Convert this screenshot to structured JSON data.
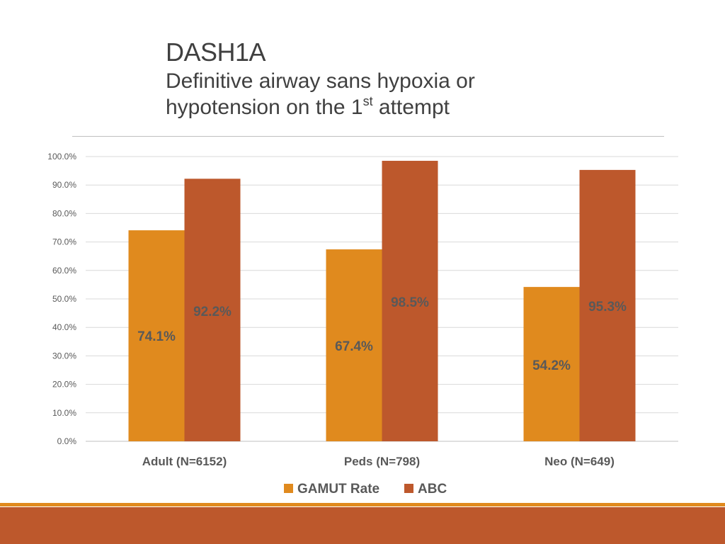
{
  "slide": {
    "title": "DASH1A",
    "subtitle_line1": "Definitive airway sans hypoxia or",
    "subtitle_line2_pre": "hypotension on the 1",
    "subtitle_line2_sup": "st",
    "subtitle_line2_post": " attempt"
  },
  "colors": {
    "gamut": "#e08a1e",
    "abc": "#bd582c",
    "label_text": "#595959",
    "grid": "#d9d9d9",
    "footer_band": "#bd582c",
    "footer_line": "#e08a1e"
  },
  "chart_data": {
    "type": "bar",
    "title": "",
    "xlabel": "",
    "ylabel": "",
    "categories": [
      "Adult (N=6152)",
      "Peds (N=798)",
      "Neo (N=649)"
    ],
    "series": [
      {
        "name": "GAMUT Rate",
        "values": [
          74.1,
          67.4,
          54.2
        ],
        "labels": [
          "74.1%",
          "67.4%",
          "54.2%"
        ]
      },
      {
        "name": "ABC",
        "values": [
          92.2,
          98.5,
          95.3
        ],
        "labels": [
          "92.2%",
          "98.5%",
          "95.3%"
        ]
      }
    ],
    "ylim": [
      0,
      100
    ],
    "yticks": [
      "0.0%",
      "10.0%",
      "20.0%",
      "30.0%",
      "40.0%",
      "50.0%",
      "60.0%",
      "70.0%",
      "80.0%",
      "90.0%",
      "100.0%"
    ],
    "grid": true,
    "legend": "bottom"
  }
}
